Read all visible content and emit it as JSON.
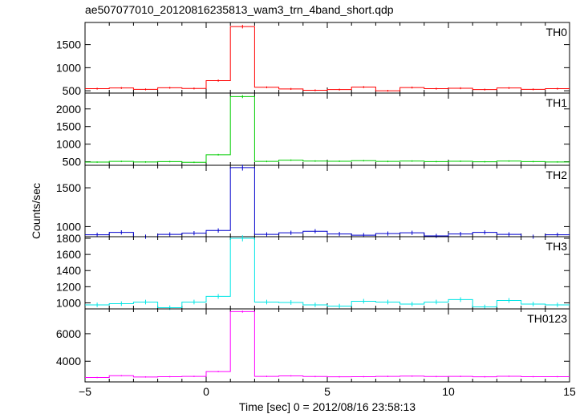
{
  "chart_data": {
    "type": "line",
    "title": "ae507077010_20120816235813_wam3_trn_4band_short.qdp",
    "xlabel": "Time [sec] 0 = 2012/08/16 23:58:13",
    "ylabel": "Counts/sec",
    "xlim": [
      -5,
      15
    ],
    "x_ticks": [
      -5,
      0,
      5,
      10,
      15
    ],
    "x_tick_labels": [
      "−5",
      "0",
      "5",
      "10",
      "15"
    ],
    "bin_width": 1.0,
    "x": [
      -5.0,
      -4.0,
      -3.0,
      -2.0,
      -1.0,
      0.0,
      1.0,
      2.0,
      3.0,
      4.0,
      5.0,
      6.0,
      7.0,
      8.0,
      9.0,
      10.0,
      11.0,
      12.0,
      13.0,
      14.0
    ],
    "panels": [
      {
        "name": "TH0",
        "color": "#ff0000",
        "ylim": [
          450,
          1980
        ],
        "yticks": [
          500,
          1000,
          1500
        ],
        "values": [
          545,
          560,
          530,
          565,
          550,
          720,
          1890,
          575,
          540,
          510,
          525,
          580,
          500,
          570,
          545,
          555,
          525,
          560,
          530,
          545
        ]
      },
      {
        "name": "TH1",
        "color": "#00cc00",
        "ylim": [
          400,
          2450
        ],
        "yticks": [
          500,
          1000,
          1500,
          2000
        ],
        "values": [
          490,
          510,
          495,
          505,
          485,
          700,
          2350,
          510,
          545,
          520,
          515,
          530,
          510,
          520,
          505,
          515,
          500,
          520,
          505,
          495
        ]
      },
      {
        "name": "TH2",
        "color": "#0000cc",
        "ylim": [
          870,
          1790
        ],
        "yticks": [
          1000,
          1500
        ],
        "values": [
          895,
          925,
          870,
          900,
          915,
          950,
          1760,
          900,
          920,
          940,
          905,
          890,
          910,
          920,
          880,
          905,
          925,
          900,
          870,
          895
        ]
      },
      {
        "name": "TH3",
        "color": "#00e5e5",
        "ylim": [
          925,
          1820
        ],
        "yticks": [
          1000,
          1200,
          1400,
          1600,
          1800
        ],
        "values": [
          975,
          990,
          1010,
          940,
          1010,
          1080,
          1800,
          1010,
          1005,
          975,
          960,
          1020,
          1010,
          985,
          1010,
          1040,
          950,
          1030,
          985,
          975
        ]
      },
      {
        "name": "TH0123",
        "color": "#ff00ff",
        "ylim": [
          2500,
          7800
        ],
        "yticks": [
          4000,
          6000
        ],
        "values": [
          2820,
          2950,
          2860,
          2880,
          2900,
          3250,
          7600,
          2900,
          2940,
          2890,
          2870,
          2880,
          2900,
          2920,
          2890,
          2900,
          2870,
          2910,
          2880,
          2880
        ]
      }
    ]
  }
}
